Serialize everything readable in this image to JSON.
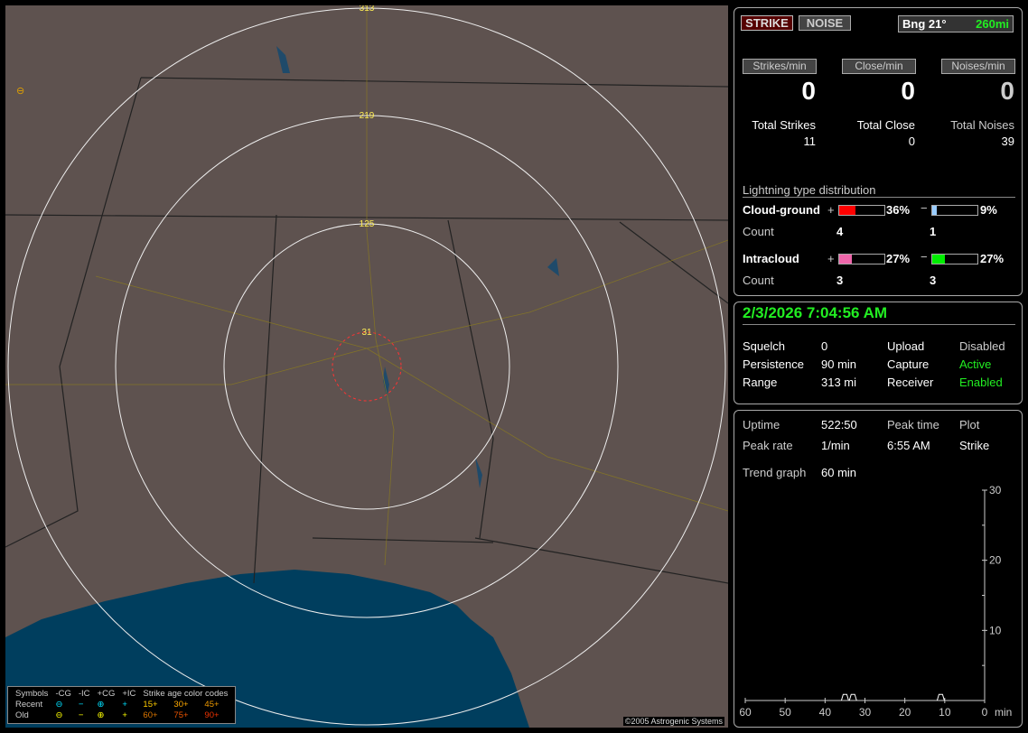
{
  "map": {
    "range_labels": [
      "313",
      "219",
      "125",
      "31"
    ],
    "copyright": "©2005 Astrogenic Systems",
    "legend": {
      "header": [
        "Symbols",
        "-CG",
        "-IC",
        "+CG",
        "+IC",
        "Strike age color codes"
      ],
      "recent": {
        "label": "Recent",
        "symbols": [
          "⊖",
          "−",
          "⊕",
          "+"
        ],
        "ages": [
          "15+",
          "30+",
          "45+"
        ]
      },
      "old": {
        "label": "Old",
        "symbols": [
          "⊖",
          "−",
          "⊕",
          "+"
        ],
        "ages": [
          "60+",
          "75+",
          "90+"
        ]
      }
    }
  },
  "mode": {
    "strike": "STRIKE",
    "noise": "NOISE",
    "bearing": "Bng 21°",
    "distance": "260mi"
  },
  "rates": [
    {
      "label": "Strikes/min",
      "value": "0",
      "total_label": "Total Strikes",
      "total": "11"
    },
    {
      "label": "Close/min",
      "value": "0",
      "total_label": "Total Close",
      "total": "0"
    },
    {
      "label": "Noises/min",
      "value": "0",
      "total_label": "Total Noises",
      "total": "39"
    }
  ],
  "distribution": {
    "title": "Lightning type distribution",
    "count_label": "Count",
    "cg": {
      "label": "Cloud-ground",
      "pos_pct": "36%",
      "neg_pct": "9%",
      "pos_count": "4",
      "neg_count": "1",
      "pos_frac": 0.36,
      "neg_frac": 0.09,
      "pos_color": "#ff0000",
      "neg_color": "#99ccff"
    },
    "ic": {
      "label": "Intracloud",
      "pos_pct": "27%",
      "neg_pct": "27%",
      "pos_count": "3",
      "neg_count": "3",
      "pos_frac": 0.27,
      "neg_frac": 0.27,
      "pos_color": "#ee66aa",
      "neg_color": "#00ee00"
    }
  },
  "status": {
    "datetime": "2/3/2026 7:04:56 AM",
    "rows": [
      [
        "Squelch",
        "0",
        "Upload",
        "Disabled"
      ],
      [
        "Persistence",
        "90 min",
        "Capture",
        "Active"
      ],
      [
        "Range",
        "313 mi",
        "Receiver",
        "Enabled"
      ]
    ]
  },
  "stats": {
    "uptime_label": "Uptime",
    "uptime": "522:50",
    "peak_time_label": "Peak time",
    "plot_label": "Plot",
    "peak_rate_label": "Peak rate",
    "peak_rate": "1/min",
    "peak_time": "6:55 AM",
    "plot": "Strike",
    "trend_label": "Trend graph",
    "trend": "60 min"
  },
  "chart_data": {
    "type": "line",
    "x_ticks": [
      "60",
      "50",
      "40",
      "30",
      "20",
      "10",
      "0"
    ],
    "x_unit": "min",
    "y_ticks": [
      "30",
      "20",
      "10"
    ],
    "xlim": [
      60,
      0
    ],
    "ylim": [
      0,
      30
    ],
    "peaks_minutes_ago": [
      35,
      33,
      11
    ],
    "peak_values": [
      1,
      1,
      1
    ]
  }
}
